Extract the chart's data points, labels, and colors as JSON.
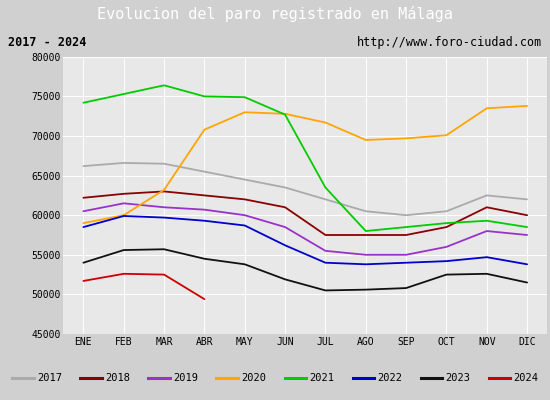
{
  "title": "Evolucion del paro registrado en Málaga",
  "subtitle_left": "2017 - 2024",
  "subtitle_right": "http://www.foro-ciudad.com",
  "xlabel_months": [
    "ENE",
    "FEB",
    "MAR",
    "ABR",
    "MAY",
    "JUN",
    "JUL",
    "AGO",
    "SEP",
    "OCT",
    "NOV",
    "DIC"
  ],
  "ylim": [
    45000,
    80000
  ],
  "yticks": [
    45000,
    50000,
    55000,
    60000,
    65000,
    70000,
    75000,
    80000
  ],
  "series": {
    "2017": {
      "color": "#aaaaaa",
      "data": [
        66200,
        66600,
        66500,
        65500,
        64500,
        63500,
        62000,
        60500,
        60000,
        60500,
        62500,
        62000
      ]
    },
    "2018": {
      "color": "#8b0000",
      "data": [
        62200,
        62700,
        63000,
        62500,
        62000,
        61000,
        57500,
        57500,
        57500,
        58500,
        61000,
        60000
      ]
    },
    "2019": {
      "color": "#9932cc",
      "data": [
        60500,
        61500,
        61000,
        60700,
        60000,
        58500,
        55500,
        55000,
        55000,
        56000,
        58000,
        57500
      ]
    },
    "2020": {
      "color": "#ffa500",
      "data": [
        59000,
        60000,
        63200,
        70800,
        73000,
        72800,
        71700,
        69500,
        69700,
        70100,
        73500,
        73800
      ]
    },
    "2021": {
      "color": "#00cc00",
      "data": [
        74200,
        75300,
        76400,
        75000,
        74900,
        72700,
        63500,
        58000,
        58500,
        59000,
        59300,
        58500
      ]
    },
    "2022": {
      "color": "#0000cc",
      "data": [
        58500,
        59900,
        59700,
        59300,
        58700,
        56200,
        54000,
        53800,
        54000,
        54200,
        54700,
        53800
      ]
    },
    "2023": {
      "color": "#111111",
      "data": [
        54000,
        55600,
        55700,
        54500,
        53800,
        51900,
        50500,
        50600,
        50800,
        52500,
        52600,
        51500
      ]
    },
    "2024": {
      "color": "#cc0000",
      "data": [
        51700,
        52600,
        52500,
        49400,
        null,
        null,
        null,
        null,
        null,
        null,
        null,
        null
      ]
    }
  },
  "background_color": "#d0d0d0",
  "plot_bg_color": "#e8e8e8",
  "title_bg_color": "#4a8fd4",
  "title_text_color": "#ffffff",
  "header_bg_color": "#f5f5f5",
  "grid_color": "#ffffff",
  "legend_bg_color": "#f5f5f5",
  "outer_border_color": "#5566aa"
}
